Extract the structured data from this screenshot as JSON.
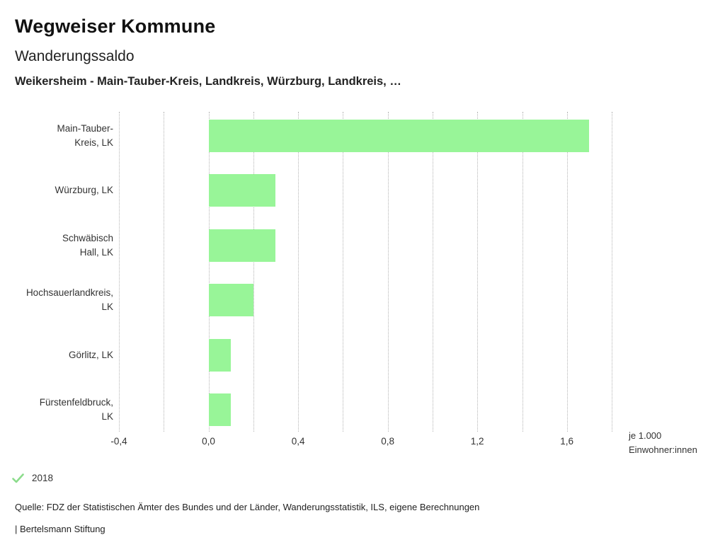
{
  "header": {
    "app_title": "Wegweiser Kommune",
    "chart_title": "Wanderungssaldo",
    "chart_subtitle": "Weikersheim - Main-Tauber-Kreis, Landkreis, Würzburg, Landkreis, …"
  },
  "chart_data": {
    "type": "bar",
    "orientation": "horizontal",
    "title": "Wanderungssaldo",
    "subtitle": "Weikersheim - Main-Tauber-Kreis, Landkreis, Würzburg, Landkreis, …",
    "categories": [
      "Main-Tauber-Kreis, LK",
      "Würzburg, LK",
      "Schwäbisch Hall, LK",
      "Hochsauerlandkreis, LK",
      "Görlitz, LK",
      "Fürstenfeldbruck, LK"
    ],
    "category_label_lines": [
      [
        "Main-Tauber-",
        "Kreis, LK"
      ],
      [
        "Würzburg, LK"
      ],
      [
        "Schwäbisch",
        "Hall, LK"
      ],
      [
        "Hochsauerlandkreis,",
        "LK"
      ],
      [
        "Görlitz, LK"
      ],
      [
        "Fürstenfeldbruck,",
        "LK"
      ]
    ],
    "series": [
      {
        "name": "2018",
        "values": [
          1.7,
          0.3,
          0.3,
          0.2,
          0.1,
          0.1
        ]
      }
    ],
    "xlim": [
      -0.4,
      1.8
    ],
    "x_tick_step": 0.2,
    "x_label_step": 0.4,
    "x_tick_labels": [
      "-0,4",
      "0,0",
      "0,4",
      "0,8",
      "1,2",
      "1,6"
    ],
    "xlabel": "je 1.000 Einwohner:innen",
    "unit_label_lines": [
      "je 1.000",
      "Einwohner:innen"
    ],
    "ylabel": "",
    "grid": "vertical-dotted",
    "legend_position": "bottom-left",
    "bar_color": "#98f598",
    "grid_color": "#b4b4b4"
  },
  "legend": {
    "check_icon": "check-icon",
    "check_color": "#8cdc8c",
    "year": "2018"
  },
  "footer": {
    "source": "Quelle: FDZ der Statistischen Ämter des Bundes und der Länder, Wanderungsstatistik, ILS, eigene Berechnungen",
    "brand": "| Bertelsmann Stiftung"
  }
}
